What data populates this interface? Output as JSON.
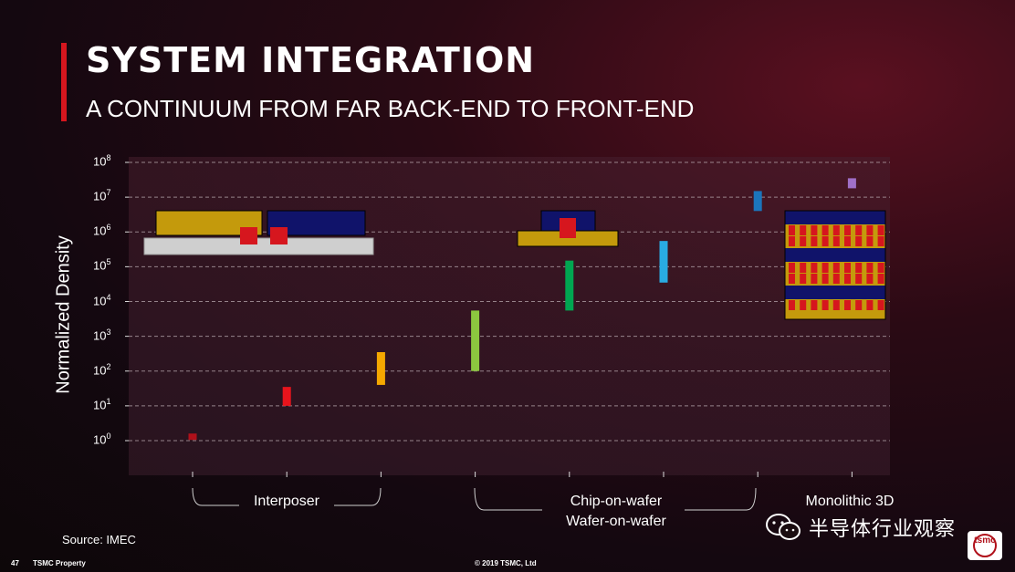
{
  "slide": {
    "title": "SYSTEM INTEGRATION",
    "subtitle": "A CONTINUUM FROM FAR BACK-END TO FRONT-END",
    "source": "Source: IMEC",
    "page_number": "47",
    "property": "TSMC Property",
    "copyright": "© 2019 TSMC, Ltd",
    "watermark_text": "半导体行业观察",
    "logo_text": "tsmc",
    "accent_color": "#d6161e"
  },
  "chart_data": {
    "type": "range-bar",
    "ylabel": "Normalized Density",
    "y_scale": "log10",
    "ylim": [
      1,
      100000000
    ],
    "y_tick_exponents": [
      0,
      1,
      2,
      3,
      4,
      5,
      6,
      7,
      8
    ],
    "grid": "dashed horizontal",
    "groups": [
      {
        "label": "Interposer",
        "lines": [
          "Interposer"
        ]
      },
      {
        "label": "Chip-on-wafer Wafer-on-wafer",
        "lines": [
          "Chip-on-wafer",
          "Wafer-on-wafer"
        ]
      },
      {
        "label": "Monolithic 3D",
        "lines": [
          "Monolithic 3D"
        ]
      }
    ],
    "bars": [
      {
        "position": 1,
        "low": 1.1,
        "high": 1.6,
        "color": "#b0101a"
      },
      {
        "position": 2,
        "low": 10,
        "high": 35,
        "color": "#e8141c"
      },
      {
        "position": 3,
        "low": 40,
        "high": 350,
        "color": "#f5a800"
      },
      {
        "position": 4,
        "low": 100,
        "high": 5500,
        "color": "#8cc63f"
      },
      {
        "position": 5,
        "low": 5500,
        "high": 150000,
        "color": "#00a651"
      },
      {
        "position": 6,
        "low": 35000,
        "high": 550000,
        "color": "#29abe2"
      },
      {
        "position": 7,
        "low": 4000000,
        "high": 15000000,
        "color": "#1b75bc"
      },
      {
        "position": 8,
        "low": 18000000,
        "high": 35000000,
        "color": "#a070c8"
      }
    ]
  }
}
